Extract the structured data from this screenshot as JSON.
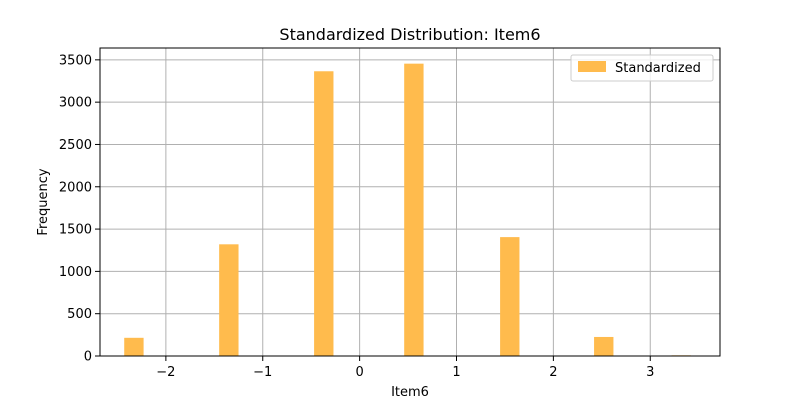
{
  "chart_data": {
    "type": "bar",
    "title": "Standardized Distribution: Item6",
    "xlabel": "Item6",
    "ylabel": "Frequency",
    "xlim": [
      -2.68,
      3.72
    ],
    "ylim": [
      0,
      3640
    ],
    "xticks": [
      -2,
      -1,
      0,
      1,
      2,
      3
    ],
    "yticks": [
      0,
      500,
      1000,
      1500,
      2000,
      2500,
      3000,
      3500
    ],
    "grid": true,
    "legend_position": "top-right",
    "bar_color": "#ffbb4d",
    "series": [
      {
        "name": "Standardized",
        "bins": [
          {
            "x0": -2.43,
            "x1": -2.23,
            "value": 215
          },
          {
            "x0": -1.45,
            "x1": -1.25,
            "value": 1320
          },
          {
            "x0": -0.47,
            "x1": -0.27,
            "value": 3365
          },
          {
            "x0": 0.46,
            "x1": 0.66,
            "value": 3455
          },
          {
            "x0": 1.45,
            "x1": 1.65,
            "value": 1405
          },
          {
            "x0": 2.42,
            "x1": 2.62,
            "value": 225
          },
          {
            "x0": 3.22,
            "x1": 3.42,
            "value": 8
          }
        ]
      }
    ]
  }
}
